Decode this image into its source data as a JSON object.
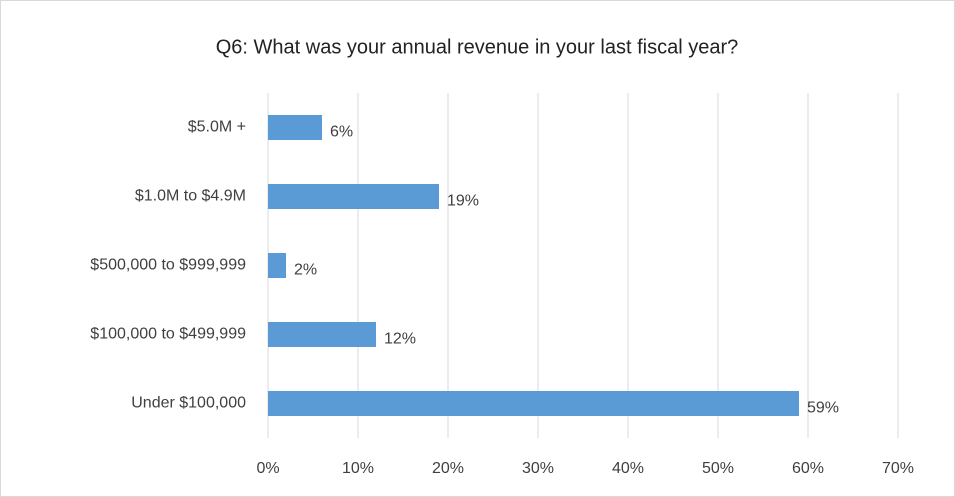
{
  "chart_data": {
    "type": "bar",
    "orientation": "horizontal",
    "title": "Q6: What was your annual revenue in your last fiscal year?",
    "categories": [
      "$5.0M +",
      "$1.0M to $4.9M",
      "$500,000 to $999,999",
      "$100,000 to $499,999",
      "Under $100,000"
    ],
    "values": [
      6,
      19,
      2,
      12,
      59
    ],
    "value_labels": [
      "6%",
      "19%",
      "2%",
      "12%",
      "59%"
    ],
    "color": "#5b9bd5",
    "xlim": [
      0,
      70
    ],
    "xticks": [
      {
        "value": 0,
        "label": "0%"
      },
      {
        "value": 10,
        "label": "10%"
      },
      {
        "value": 20,
        "label": "20%"
      },
      {
        "value": 30,
        "label": "30%"
      },
      {
        "value": 40,
        "label": "40%"
      },
      {
        "value": 50,
        "label": "50%"
      },
      {
        "value": 60,
        "label": "60%"
      },
      {
        "value": 70,
        "label": "70%"
      }
    ],
    "grid": true
  }
}
